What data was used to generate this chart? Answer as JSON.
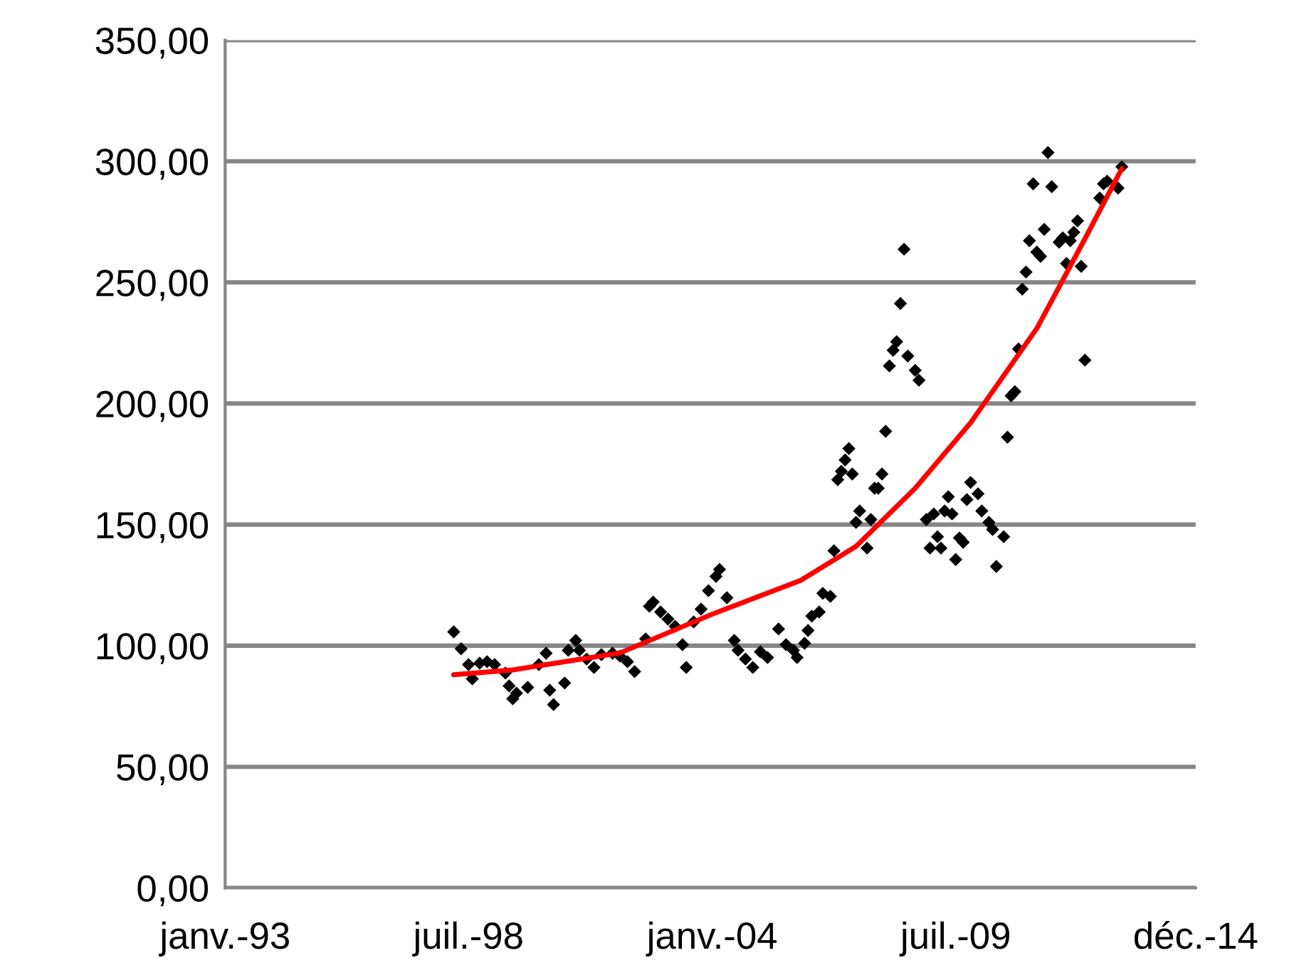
{
  "chart_data": {
    "type": "scatter",
    "xlim": [
      "1993-01-01",
      "2014-12-01"
    ],
    "xticks": [
      {
        "value": "1993-01-01",
        "label": "janv.-93"
      },
      {
        "value": "1998-07-01",
        "label": "juil.-98"
      },
      {
        "value": "2004-01-01",
        "label": "janv.-04"
      },
      {
        "value": "2009-07-01",
        "label": "juil.-09"
      },
      {
        "value": "2014-12-01",
        "label": "déc.-14"
      }
    ],
    "ylim": [
      0,
      350
    ],
    "yticks": [
      {
        "value": 0,
        "label": "0,00"
      },
      {
        "value": 50,
        "label": "50,00"
      },
      {
        "value": 100,
        "label": "100,00"
      },
      {
        "value": 150,
        "label": "150,00"
      },
      {
        "value": 200,
        "label": "200,00"
      },
      {
        "value": 250,
        "label": "250,00"
      },
      {
        "value": 300,
        "label": "300,00"
      },
      {
        "value": 350,
        "label": "350,00"
      }
    ],
    "grid": "y",
    "legend": false,
    "series": [
      {
        "marker": "diamond",
        "color": "#000000",
        "x": [
          "1998-03",
          "1998-05",
          "1998-07",
          "1998-08",
          "1998-10",
          "1998-12",
          "1999-02",
          "1999-05",
          "1999-06",
          "1999-07",
          "1999-08",
          "1999-11",
          "2000-02",
          "2000-04",
          "2000-05",
          "2000-06",
          "2000-09",
          "2000-10",
          "2000-12",
          "2001-01",
          "2001-03",
          "2001-05",
          "2001-07",
          "2001-10",
          "2001-12",
          "2002-02",
          "2002-04",
          "2002-07",
          "2002-08",
          "2002-09",
          "2002-11",
          "2003-01",
          "2003-03",
          "2003-05",
          "2003-06",
          "2003-08",
          "2003-10",
          "2003-12",
          "2004-02",
          "2004-03",
          "2004-05",
          "2004-07",
          "2004-08",
          "2004-10",
          "2004-12",
          "2005-02",
          "2005-04",
          "2005-07",
          "2005-09",
          "2005-11",
          "2005-12",
          "2006-02",
          "2006-03",
          "2006-04",
          "2006-06",
          "2006-07",
          "2006-09",
          "2006-10",
          "2006-11",
          "2006-12",
          "2007-01",
          "2007-02",
          "2007-03",
          "2007-04",
          "2007-05",
          "2007-07",
          "2007-08",
          "2007-09",
          "2007-10",
          "2007-11",
          "2007-12",
          "2008-01",
          "2008-02",
          "2008-03",
          "2008-04",
          "2008-05",
          "2008-06",
          "2008-08",
          "2008-09",
          "2008-11",
          "2008-12",
          "2009-01",
          "2009-02",
          "2009-03",
          "2009-04",
          "2009-05",
          "2009-06",
          "2009-07",
          "2009-08",
          "2009-09",
          "2009-10",
          "2009-11",
          "2010-01",
          "2010-02",
          "2010-04",
          "2010-05",
          "2010-06",
          "2010-08",
          "2010-09",
          "2010-10",
          "2010-11",
          "2010-12",
          "2011-01",
          "2011-02",
          "2011-03",
          "2011-04",
          "2011-05",
          "2011-06",
          "2011-07",
          "2011-08",
          "2011-09",
          "2011-11",
          "2011-12",
          "2012-01",
          "2012-02",
          "2012-03",
          "2012-04",
          "2012-05",
          "2012-06",
          "2012-10",
          "2012-11",
          "2012-12",
          "2013-03",
          "2013-04"
        ],
        "values": [
          105.7,
          98.7,
          92.2,
          86.3,
          92.8,
          93.4,
          92.2,
          88.7,
          83.4,
          78.1,
          80.4,
          82.8,
          92.2,
          96.9,
          81.6,
          75.7,
          84.6,
          98.1,
          102.2,
          98.1,
          94.5,
          91.0,
          96.3,
          96.9,
          95.7,
          93.4,
          89.3,
          102.8,
          116.3,
          118.0,
          113.9,
          111.0,
          108.0,
          100.4,
          91.0,
          109.8,
          115.1,
          122.7,
          128.6,
          131.5,
          119.8,
          102.2,
          98.1,
          94.5,
          91.0,
          97.5,
          95.1,
          106.9,
          100.4,
          98.1,
          95.1,
          101.0,
          106.3,
          112.2,
          113.9,
          121.6,
          120.4,
          139.2,
          168.5,
          172.0,
          176.7,
          181.4,
          170.9,
          150.9,
          155.6,
          140.3,
          152.1,
          165.0,
          165.0,
          170.9,
          188.5,
          215.5,
          222.0,
          225.5,
          241.3,
          263.7,
          219.6,
          213.7,
          209.6,
          152.1,
          140.3,
          154.4,
          145.0,
          140.3,
          155.6,
          161.5,
          154.4,
          135.6,
          144.5,
          142.7,
          160.3,
          167.4,
          162.7,
          155.6,
          150.9,
          148.0,
          132.7,
          145.0,
          186.1,
          203.2,
          204.9,
          222.5,
          247.2,
          254.3,
          267.2,
          290.7,
          262.5,
          260.7,
          271.9,
          303.6,
          289.5,
          266.6,
          268.4,
          257.8,
          267.2,
          270.7,
          275.4,
          256.6,
          217.9,
          284.8,
          290.7,
          291.8,
          288.9,
          297.7
        ]
      },
      {
        "type": "line",
        "color": "#ff0000",
        "line_style": "solid",
        "x": [
          "1998-03",
          "1999-07",
          "2001-12",
          "2004-01",
          "2006-01",
          "2007-04",
          "2008-08",
          "2009-11",
          "2011-05",
          "2012-06",
          "2013-04"
        ],
        "values": [
          88,
          90,
          97,
          113,
          127,
          141,
          165,
          192,
          231,
          268,
          297
        ]
      }
    ]
  }
}
